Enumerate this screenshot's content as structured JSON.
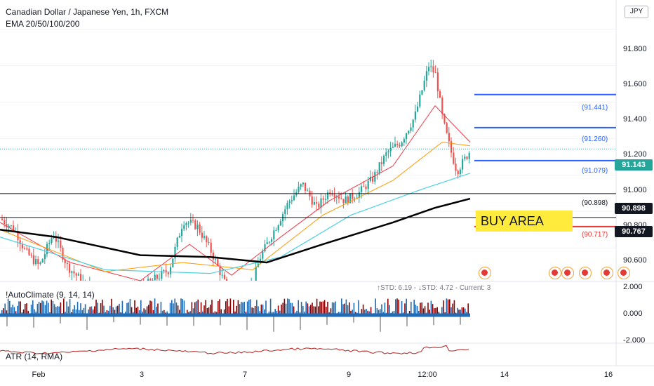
{
  "header": {
    "title": "Canadian Dollar / Japanese Yen, 1h, FXCM",
    "indicator": "EMA 20/50/100/200",
    "currency": "JPY"
  },
  "colors": {
    "up": "#26a69a",
    "down": "#ef5350",
    "ema20": "#f23645",
    "ema50": "#ff9800",
    "ema100": "#4dd0e1",
    "ema200": "#000000",
    "level_blue": "#2962ff",
    "level_red": "#e53935",
    "climate_blue": "#1f6bb4",
    "climate_red": "#8b0000",
    "atr": "#b71c1c"
  },
  "chart_data": {
    "type": "candlestick",
    "title": "Canadian Dollar / Japanese Yen, 1h, FXCM",
    "x_ticks": [
      "Feb",
      "3",
      "7",
      "9",
      "12:00",
      "14",
      "16"
    ],
    "y_ticks": [
      "91.800",
      "91.600",
      "91.400",
      "91.200",
      "91.000",
      "90.800",
      "90.600"
    ],
    "ylim": [
      90.42,
      91.96
    ],
    "current_price": "91.143",
    "close_path": [
      {
        "x": 0,
        "y": 90.76
      },
      {
        "x": 20,
        "y": 90.7
      },
      {
        "x": 35,
        "y": 90.58
      },
      {
        "x": 55,
        "y": 90.5
      },
      {
        "x": 75,
        "y": 90.68
      },
      {
        "x": 95,
        "y": 90.5
      },
      {
        "x": 120,
        "y": 90.4
      },
      {
        "x": 160,
        "y": 90.35
      },
      {
        "x": 200,
        "y": 90.38
      },
      {
        "x": 240,
        "y": 90.48
      },
      {
        "x": 260,
        "y": 90.75
      },
      {
        "x": 280,
        "y": 90.72
      },
      {
        "x": 300,
        "y": 90.58
      },
      {
        "x": 320,
        "y": 90.4
      },
      {
        "x": 350,
        "y": 90.3
      },
      {
        "x": 370,
        "y": 90.55
      },
      {
        "x": 390,
        "y": 90.7
      },
      {
        "x": 410,
        "y": 90.85
      },
      {
        "x": 430,
        "y": 90.95
      },
      {
        "x": 450,
        "y": 90.82
      },
      {
        "x": 470,
        "y": 90.92
      },
      {
        "x": 490,
        "y": 90.86
      },
      {
        "x": 510,
        "y": 90.9
      },
      {
        "x": 530,
        "y": 90.98
      },
      {
        "x": 550,
        "y": 91.12
      },
      {
        "x": 570,
        "y": 91.18
      },
      {
        "x": 590,
        "y": 91.32
      },
      {
        "x": 610,
        "y": 91.6
      },
      {
        "x": 620,
        "y": 91.55
      },
      {
        "x": 630,
        "y": 91.3
      },
      {
        "x": 640,
        "y": 91.15
      },
      {
        "x": 650,
        "y": 91.02
      },
      {
        "x": 660,
        "y": 91.08
      },
      {
        "x": 670,
        "y": 91.14
      }
    ],
    "emas": [
      {
        "name": "EMA 20",
        "points": [
          {
            "x": 0,
            "y": 90.74
          },
          {
            "x": 100,
            "y": 90.52
          },
          {
            "x": 200,
            "y": 90.4
          },
          {
            "x": 270,
            "y": 90.62
          },
          {
            "x": 330,
            "y": 90.45
          },
          {
            "x": 400,
            "y": 90.66
          },
          {
            "x": 470,
            "y": 90.86
          },
          {
            "x": 560,
            "y": 91.05
          },
          {
            "x": 620,
            "y": 91.38
          },
          {
            "x": 670,
            "y": 91.18
          }
        ]
      },
      {
        "name": "EMA 50",
        "points": [
          {
            "x": 0,
            "y": 90.7
          },
          {
            "x": 150,
            "y": 90.47
          },
          {
            "x": 260,
            "y": 90.52
          },
          {
            "x": 360,
            "y": 90.48
          },
          {
            "x": 460,
            "y": 90.78
          },
          {
            "x": 560,
            "y": 90.97
          },
          {
            "x": 630,
            "y": 91.18
          },
          {
            "x": 670,
            "y": 91.16
          }
        ]
      },
      {
        "name": "EMA 100",
        "points": [
          {
            "x": 0,
            "y": 90.66
          },
          {
            "x": 150,
            "y": 90.48
          },
          {
            "x": 300,
            "y": 90.46
          },
          {
            "x": 400,
            "y": 90.55
          },
          {
            "x": 500,
            "y": 90.78
          },
          {
            "x": 600,
            "y": 90.92
          },
          {
            "x": 670,
            "y": 91.01
          }
        ]
      },
      {
        "name": "EMA 200",
        "points": [
          {
            "x": 0,
            "y": 90.7
          },
          {
            "x": 80,
            "y": 90.66
          },
          {
            "x": 200,
            "y": 90.56
          },
          {
            "x": 300,
            "y": 90.55
          },
          {
            "x": 380,
            "y": 90.52
          },
          {
            "x": 460,
            "y": 90.62
          },
          {
            "x": 560,
            "y": 90.74
          },
          {
            "x": 620,
            "y": 90.82
          },
          {
            "x": 670,
            "y": 90.87
          }
        ]
      }
    ],
    "levels": [
      {
        "value": 91.441,
        "label": "(91.441)",
        "color": "#2962ff"
      },
      {
        "value": 91.26,
        "label": "(91.260)",
        "color": "#2962ff"
      },
      {
        "value": 91.079,
        "label": "(91.079)",
        "color": "#2962ff"
      },
      {
        "value": 90.898,
        "label": "(90.898)",
        "color": "#131722"
      },
      {
        "value": 90.717,
        "label": "(90.717)",
        "color": "#e53935"
      }
    ],
    "support_lines": [
      {
        "value": 90.898,
        "badge": "90.898"
      },
      {
        "value": 90.767,
        "badge": "90.767"
      }
    ],
    "annotation": "BUY AREA",
    "indicator_1": {
      "name": "!AutoClimate (9, 14, 14)",
      "stats": "↑STD: 6.19 - ↓STD: 4.72 - Current: 3",
      "y_ticks": [
        "2.000",
        "0.000",
        "-2.000"
      ]
    },
    "indicator_2": {
      "name": "ATR (14, RMA)"
    }
  }
}
